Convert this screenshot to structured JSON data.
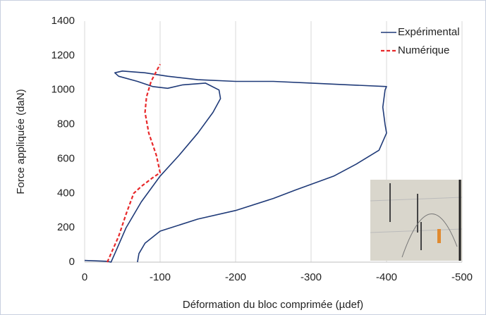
{
  "chart_data": {
    "type": "line",
    "xlabel": "Déformation du bloc comprimée (µdef)",
    "ylabel": "Force appliquée (daN)",
    "xlim": [
      0,
      -500
    ],
    "xticks": [
      0,
      -100,
      -200,
      -300,
      -400,
      -500
    ],
    "ylim": [
      0,
      1400
    ],
    "yticks": [
      0,
      200,
      400,
      600,
      800,
      1000,
      1200,
      1400
    ],
    "grid": "x",
    "legend": "upper right",
    "series": [
      {
        "name": "Expérimental",
        "color": "#1f3a78",
        "dash": false,
        "x": [
          0,
          -30,
          -35,
          -40,
          -55,
          -75,
          -100,
          -125,
          -150,
          -170,
          -180,
          -178,
          -160,
          -130,
          -110,
          -90,
          -70,
          -45,
          -40,
          -50,
          -80,
          -110,
          -150,
          -200,
          -250,
          -300,
          -350,
          -400,
          -398,
          -395,
          -398,
          -400,
          -390,
          -360,
          -330,
          -280,
          -250,
          -200,
          -150,
          -100,
          -80,
          -72,
          -70
        ],
        "values": [
          10,
          5,
          0,
          50,
          200,
          350,
          500,
          620,
          750,
          870,
          950,
          1000,
          1040,
          1030,
          1010,
          1020,
          1050,
          1080,
          1100,
          1110,
          1100,
          1080,
          1060,
          1050,
          1050,
          1040,
          1030,
          1020,
          1000,
          900,
          800,
          750,
          650,
          570,
          500,
          420,
          370,
          300,
          250,
          180,
          110,
          50,
          0
        ]
      },
      {
        "name": "Numérique",
        "color": "#e8282a",
        "dash": true,
        "x": [
          -30,
          -35,
          -45,
          -55,
          -65,
          -75,
          -90,
          -100,
          -95,
          -85,
          -80,
          -82,
          -88,
          -100
        ],
        "values": [
          0,
          50,
          150,
          280,
          400,
          440,
          490,
          520,
          620,
          750,
          870,
          960,
          1050,
          1150
        ]
      }
    ]
  }
}
